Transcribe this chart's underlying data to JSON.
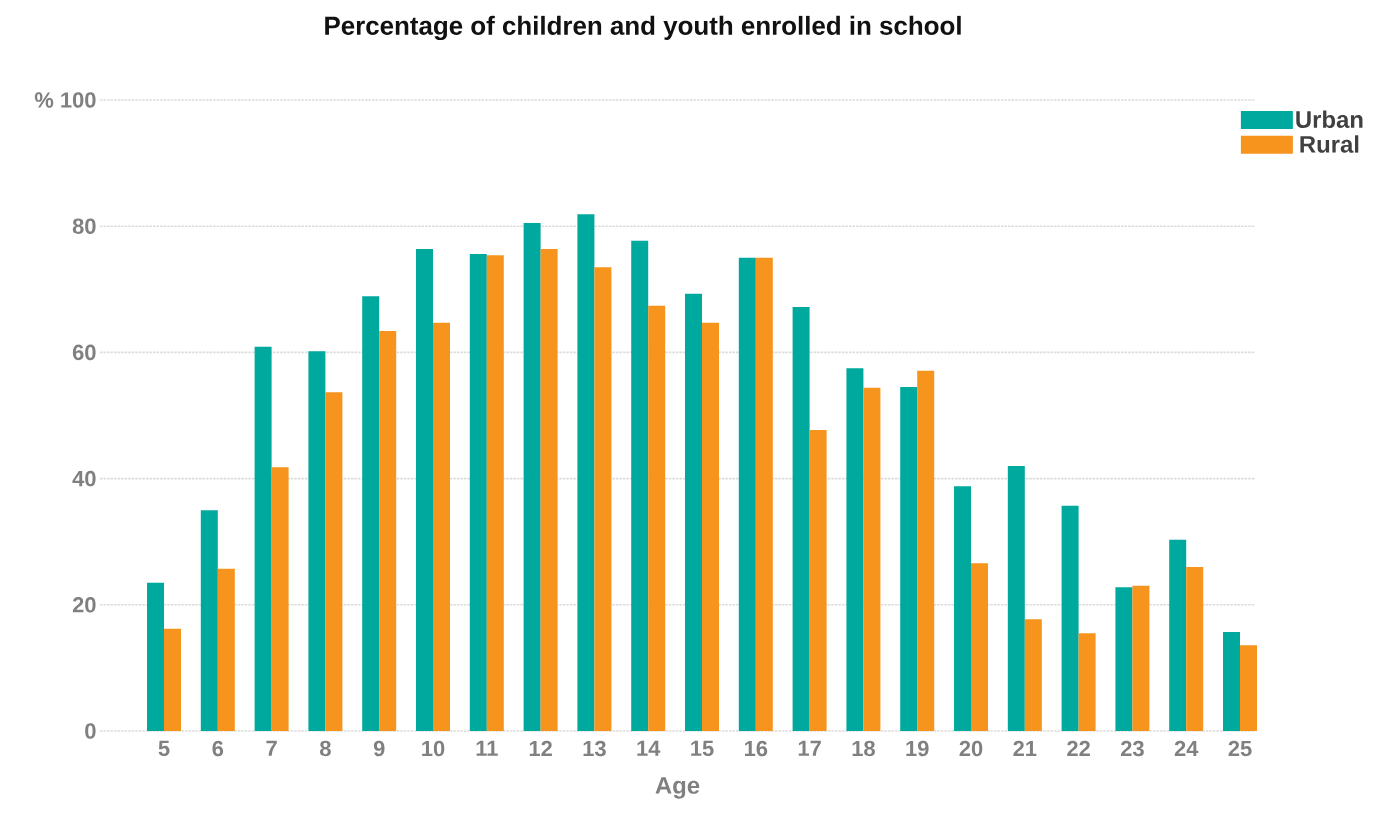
{
  "chart_data": {
    "type": "bar",
    "title": "Percentage of children and youth enrolled in school",
    "xlabel": "Age",
    "categories": [
      "5",
      "6",
      "7",
      "8",
      "9",
      "10",
      "11",
      "12",
      "13",
      "14",
      "15",
      "16",
      "17",
      "18",
      "19",
      "20",
      "21",
      "22",
      "23",
      "24",
      "25"
    ],
    "series": [
      {
        "name": "Urban",
        "color": "#00a99d",
        "values": [
          23.5,
          35.0,
          60.9,
          60.2,
          68.9,
          76.4,
          75.6,
          80.5,
          81.9,
          77.7,
          69.3,
          75.0,
          67.2,
          57.5,
          54.5,
          38.8,
          42.0,
          35.7,
          22.8,
          30.3,
          15.7
        ]
      },
      {
        "name": "Rural",
        "color": "#f7941d",
        "values": [
          16.2,
          25.7,
          41.8,
          53.7,
          63.4,
          64.7,
          75.4,
          76.4,
          73.5,
          67.4,
          64.7,
          75.0,
          47.7,
          54.4,
          57.1,
          26.6,
          17.7,
          15.5,
          23.0,
          26.0,
          13.6
        ]
      }
    ],
    "ylim": [
      0,
      100
    ],
    "yticks": [
      0,
      20,
      40,
      60,
      80,
      {
        "value": 100,
        "label": "% 100"
      }
    ],
    "grid": "y",
    "legend": "top right"
  }
}
